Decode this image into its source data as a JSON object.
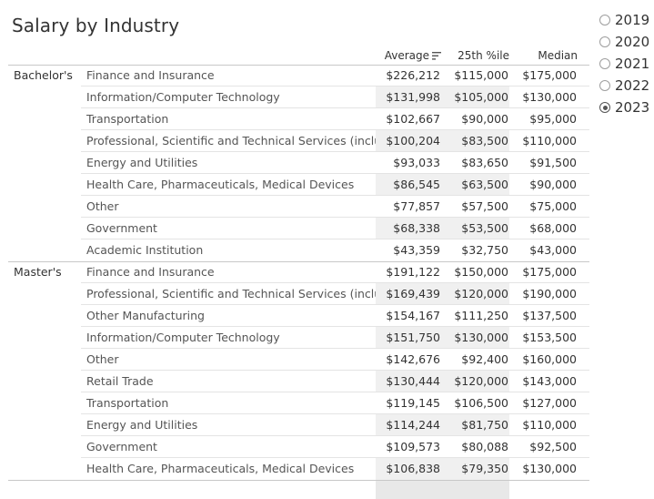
{
  "title": "Salary by Industry",
  "year_filter": {
    "options": [
      "2019",
      "2020",
      "2021",
      "2022",
      "2023"
    ],
    "selected": "2023"
  },
  "columns": {
    "average": "Average",
    "p25": "25th %ile",
    "median": "Median"
  },
  "groups": [
    {
      "label": "Bachelor's",
      "rows": [
        {
          "industry": "Finance and Insurance",
          "average": "$226,212",
          "p25": "$115,000",
          "median": "$175,000"
        },
        {
          "industry": "Information/Computer Technology",
          "average": "$131,998",
          "p25": "$105,000",
          "median": "$130,000"
        },
        {
          "industry": "Transportation",
          "average": "$102,667",
          "p25": "$90,000",
          "median": "$95,000"
        },
        {
          "industry": "Professional, Scientific and Technical Services (includin..",
          "average": "$100,204",
          "p25": "$83,500",
          "median": "$110,000"
        },
        {
          "industry": "Energy and Utilities",
          "average": "$93,033",
          "p25": "$83,650",
          "median": "$91,500"
        },
        {
          "industry": "Health Care, Pharmaceuticals, Medical Devices",
          "average": "$86,545",
          "p25": "$63,500",
          "median": "$90,000"
        },
        {
          "industry": "Other",
          "average": "$77,857",
          "p25": "$57,500",
          "median": "$75,000"
        },
        {
          "industry": "Government",
          "average": "$68,338",
          "p25": "$53,500",
          "median": "$68,000"
        },
        {
          "industry": "Academic Institution",
          "average": "$43,359",
          "p25": "$32,750",
          "median": "$43,000"
        }
      ]
    },
    {
      "label": "Master's",
      "rows": [
        {
          "industry": "Finance and Insurance",
          "average": "$191,122",
          "p25": "$150,000",
          "median": "$175,000"
        },
        {
          "industry": "Professional, Scientific and Technical Services (includin..",
          "average": "$169,439",
          "p25": "$120,000",
          "median": "$190,000"
        },
        {
          "industry": "Other Manufacturing",
          "average": "$154,167",
          "p25": "$111,250",
          "median": "$137,500"
        },
        {
          "industry": "Information/Computer Technology",
          "average": "$151,750",
          "p25": "$130,000",
          "median": "$153,500"
        },
        {
          "industry": "Other",
          "average": "$142,676",
          "p25": "$92,400",
          "median": "$160,000"
        },
        {
          "industry": "Retail Trade",
          "average": "$130,444",
          "p25": "$120,000",
          "median": "$143,000"
        },
        {
          "industry": "Transportation",
          "average": "$119,145",
          "p25": "$106,500",
          "median": "$127,000"
        },
        {
          "industry": "Energy and Utilities",
          "average": "$114,244",
          "p25": "$81,750",
          "median": "$110,000"
        },
        {
          "industry": "Government",
          "average": "$109,573",
          "p25": "$80,088",
          "median": "$92,500"
        },
        {
          "industry": "Health Care, Pharmaceuticals, Medical Devices",
          "average": "$106,838",
          "p25": "$79,350",
          "median": "$130,000"
        }
      ]
    }
  ]
}
